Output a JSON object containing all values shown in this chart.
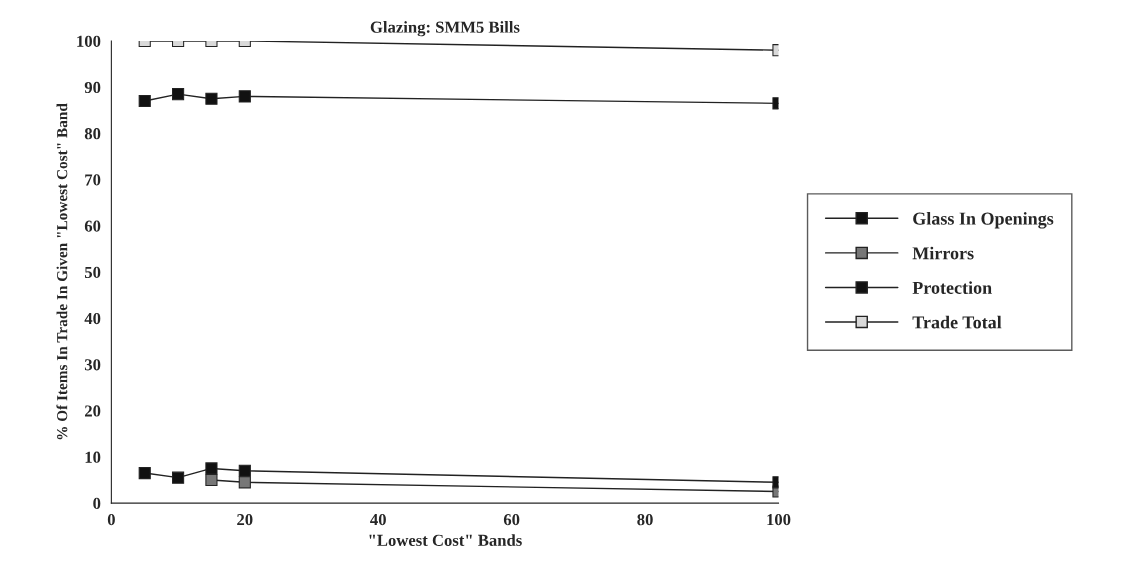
{
  "chart_data": {
    "type": "line",
    "title": "Glazing: SMM5 Bills",
    "xlabel": "\"Lowest Cost\" Bands",
    "ylabel": "% Of Items In Trade In Given \"Lowest Cost\" Band",
    "x": [
      5,
      10,
      15,
      20,
      100
    ],
    "series": [
      {
        "name": "Glass In Openings",
        "color": "#111111",
        "values": [
          87,
          88.5,
          87.5,
          88,
          86.5
        ]
      },
      {
        "name": "Mirrors",
        "color": "#777777",
        "values": [
          null,
          null,
          5,
          4.5,
          2.5
        ]
      },
      {
        "name": "Protection",
        "color": "#111111",
        "values": [
          6.5,
          5.5,
          7.5,
          7,
          4.5
        ]
      },
      {
        "name": "Trade Total",
        "color": "#d9d9d9",
        "values": [
          100,
          100,
          100,
          100,
          98
        ]
      }
    ],
    "xlim": [
      0,
      100
    ],
    "xticks": [
      0,
      20,
      40,
      60,
      80,
      100
    ],
    "ylim": [
      0,
      100
    ],
    "yticks": [
      0,
      10,
      20,
      30,
      40,
      50,
      60,
      70,
      80,
      90,
      100
    ],
    "marker": "square",
    "legend": "right",
    "grid": false
  }
}
